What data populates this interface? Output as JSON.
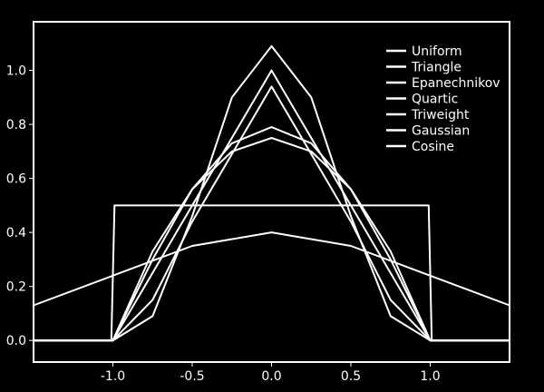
{
  "chart_data": {
    "type": "line",
    "title": "",
    "xlabel": "",
    "ylabel": "",
    "xlim": [
      -1.5,
      1.5
    ],
    "ylim": [
      -0.08,
      1.18
    ],
    "x_ticks": [
      -1.0,
      -0.5,
      0.0,
      0.5,
      1.0
    ],
    "x_tick_labels": [
      "-1.0",
      "-0.5",
      "0.0",
      "0.5",
      "1.0"
    ],
    "y_ticks": [
      0.0,
      0.2,
      0.4,
      0.6,
      0.8,
      1.0
    ],
    "y_tick_labels": [
      "0.0",
      "0.2",
      "0.4",
      "0.6",
      "0.8",
      "1.0"
    ],
    "grid": false,
    "legend_position": "top-right",
    "background_color": "#000000",
    "line_color": "#ffffff",
    "series": [
      {
        "name": "Uniform",
        "x": [
          -1.5,
          -1.01,
          -0.99,
          0.99,
          1.01,
          1.5
        ],
        "y": [
          0,
          0,
          0.5,
          0.5,
          0,
          0
        ]
      },
      {
        "name": "Triangle",
        "x": [
          -1.5,
          -1.0,
          0.0,
          1.0,
          1.5
        ],
        "y": [
          0,
          0,
          1.0,
          0,
          0
        ]
      },
      {
        "name": "Epanechnikov",
        "x": [
          -1.5,
          -1.0,
          -0.75,
          -0.5,
          -0.25,
          0.0,
          0.25,
          0.5,
          0.75,
          1.0,
          1.5
        ],
        "y": [
          0,
          0,
          0.33,
          0.56,
          0.7,
          0.75,
          0.7,
          0.56,
          0.33,
          0,
          0
        ]
      },
      {
        "name": "Quartic",
        "x": [
          -1.5,
          -1.0,
          -0.75,
          -0.5,
          -0.25,
          0.0,
          0.25,
          0.5,
          0.75,
          1.0,
          1.5
        ],
        "y": [
          0,
          0,
          0.15,
          0.44,
          0.69,
          0.94,
          0.69,
          0.44,
          0.15,
          0,
          0
        ]
      },
      {
        "name": "Triweight",
        "x": [
          -1.5,
          -1.0,
          -0.75,
          -0.5,
          -0.25,
          0.0,
          0.25,
          0.5,
          0.75,
          1.0,
          1.5
        ],
        "y": [
          0,
          0,
          0.09,
          0.46,
          0.9,
          1.09,
          0.9,
          0.46,
          0.09,
          0,
          0
        ]
      },
      {
        "name": "Gaussian",
        "x": [
          -1.5,
          -1.0,
          -0.5,
          0.0,
          0.5,
          1.0,
          1.5
        ],
        "y": [
          0.13,
          0.24,
          0.35,
          0.4,
          0.35,
          0.24,
          0.13
        ]
      },
      {
        "name": "Cosine",
        "x": [
          -1.5,
          -1.0,
          -0.75,
          -0.5,
          -0.25,
          0.0,
          0.25,
          0.5,
          0.75,
          1.0,
          1.5
        ],
        "y": [
          0,
          0,
          0.3,
          0.56,
          0.73,
          0.79,
          0.73,
          0.56,
          0.3,
          0,
          0
        ]
      }
    ]
  }
}
